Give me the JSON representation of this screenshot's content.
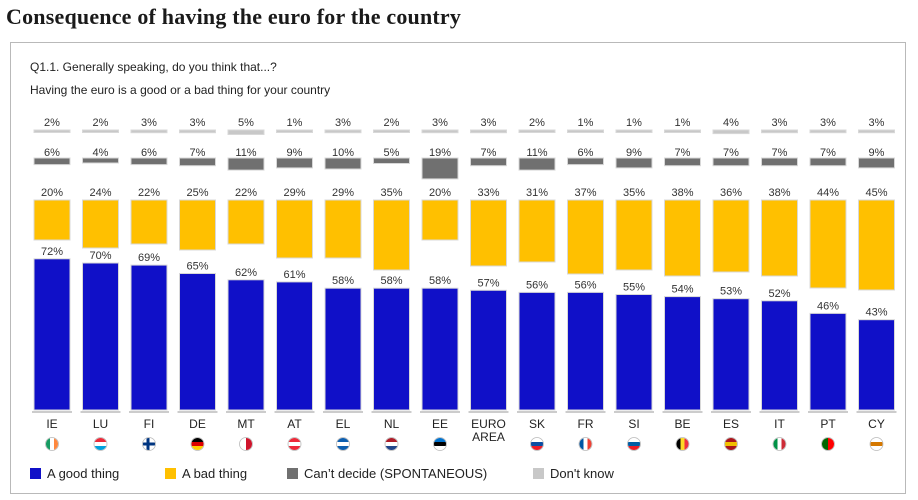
{
  "title": "Consequence of having the euro for the country",
  "question": "Q1.1. Generally speaking, do you think that...?",
  "subquestion": "Having the euro is a good or a bad thing for your country",
  "colors": {
    "good": "#1010c8",
    "bad": "#ffc000",
    "cant_decide": "#707070",
    "dont_know": "#c8c8c8"
  },
  "legend": [
    {
      "label": "A good thing",
      "color": "#1010c8"
    },
    {
      "label": "A bad thing",
      "color": "#ffc000"
    },
    {
      "label": "Can’t decide (SPONTANEOUS)",
      "color": "#707070"
    },
    {
      "label": "Don't know",
      "color": "#c8c8c8"
    }
  ],
  "chart_data": {
    "type": "bar",
    "categories": [
      "IE",
      "LU",
      "FI",
      "DE",
      "MT",
      "AT",
      "EL",
      "NL",
      "EE",
      "EURO AREA",
      "SK",
      "FR",
      "SI",
      "BE",
      "ES",
      "IT",
      "PT",
      "CY"
    ],
    "category_flags": [
      "ireland-flag-icon",
      "luxembourg-flag-icon",
      "finland-flag-icon",
      "germany-flag-icon",
      "malta-flag-icon",
      "austria-flag-icon",
      "greece-flag-icon",
      "netherlands-flag-icon",
      "estonia-flag-icon",
      "",
      "slovakia-flag-icon",
      "france-flag-icon",
      "slovenia-flag-icon",
      "belgium-flag-icon",
      "spain-flag-icon",
      "italy-flag-icon",
      "portugal-flag-icon",
      "cyprus-flag-icon"
    ],
    "series": [
      {
        "name": "A good thing",
        "values": [
          72,
          70,
          69,
          65,
          62,
          61,
          58,
          58,
          58,
          57,
          56,
          56,
          55,
          54,
          53,
          52,
          46,
          43
        ]
      },
      {
        "name": "A bad thing",
        "values": [
          20,
          24,
          22,
          25,
          22,
          29,
          29,
          35,
          20,
          33,
          31,
          37,
          35,
          38,
          36,
          38,
          44,
          45
        ]
      },
      {
        "name": "Can’t decide (SPONTANEOUS)",
        "values": [
          6,
          4,
          6,
          7,
          11,
          9,
          10,
          5,
          19,
          7,
          11,
          6,
          9,
          7,
          7,
          7,
          7,
          9
        ]
      },
      {
        "name": "Don't know",
        "values": [
          2,
          2,
          3,
          3,
          5,
          1,
          3,
          2,
          3,
          3,
          2,
          1,
          1,
          1,
          4,
          3,
          3,
          3
        ]
      }
    ],
    "value_suffix": "%",
    "grid": false,
    "legend_position": "bottom"
  }
}
